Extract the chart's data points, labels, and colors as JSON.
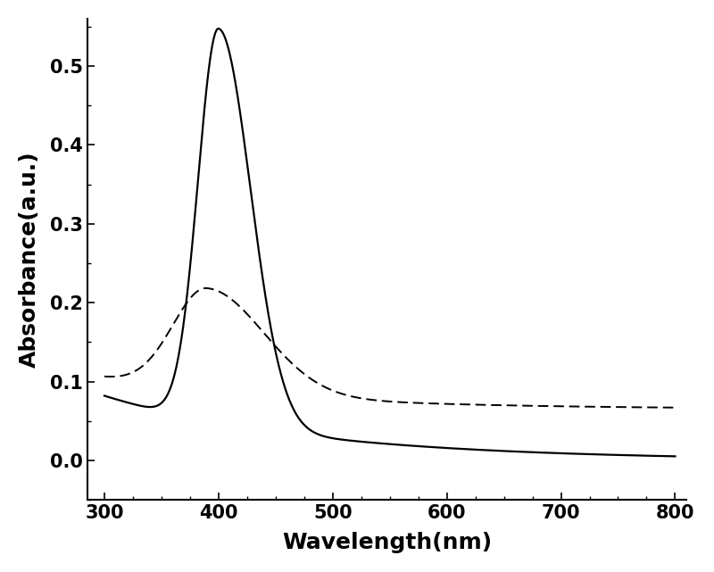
{
  "title": "",
  "xlabel": "Wavelength(nm)",
  "ylabel": "Absorbance(a.u.)",
  "xlim": [
    285,
    810
  ],
  "ylim": [
    -0.05,
    0.56
  ],
  "xticks": [
    300,
    400,
    500,
    600,
    700,
    800
  ],
  "yticks": [
    0.0,
    0.1,
    0.2,
    0.3,
    0.4,
    0.5
  ],
  "xlabel_fontsize": 18,
  "ylabel_fontsize": 18,
  "tick_fontsize": 15,
  "line_color": "#000000",
  "background_color": "#ffffff"
}
